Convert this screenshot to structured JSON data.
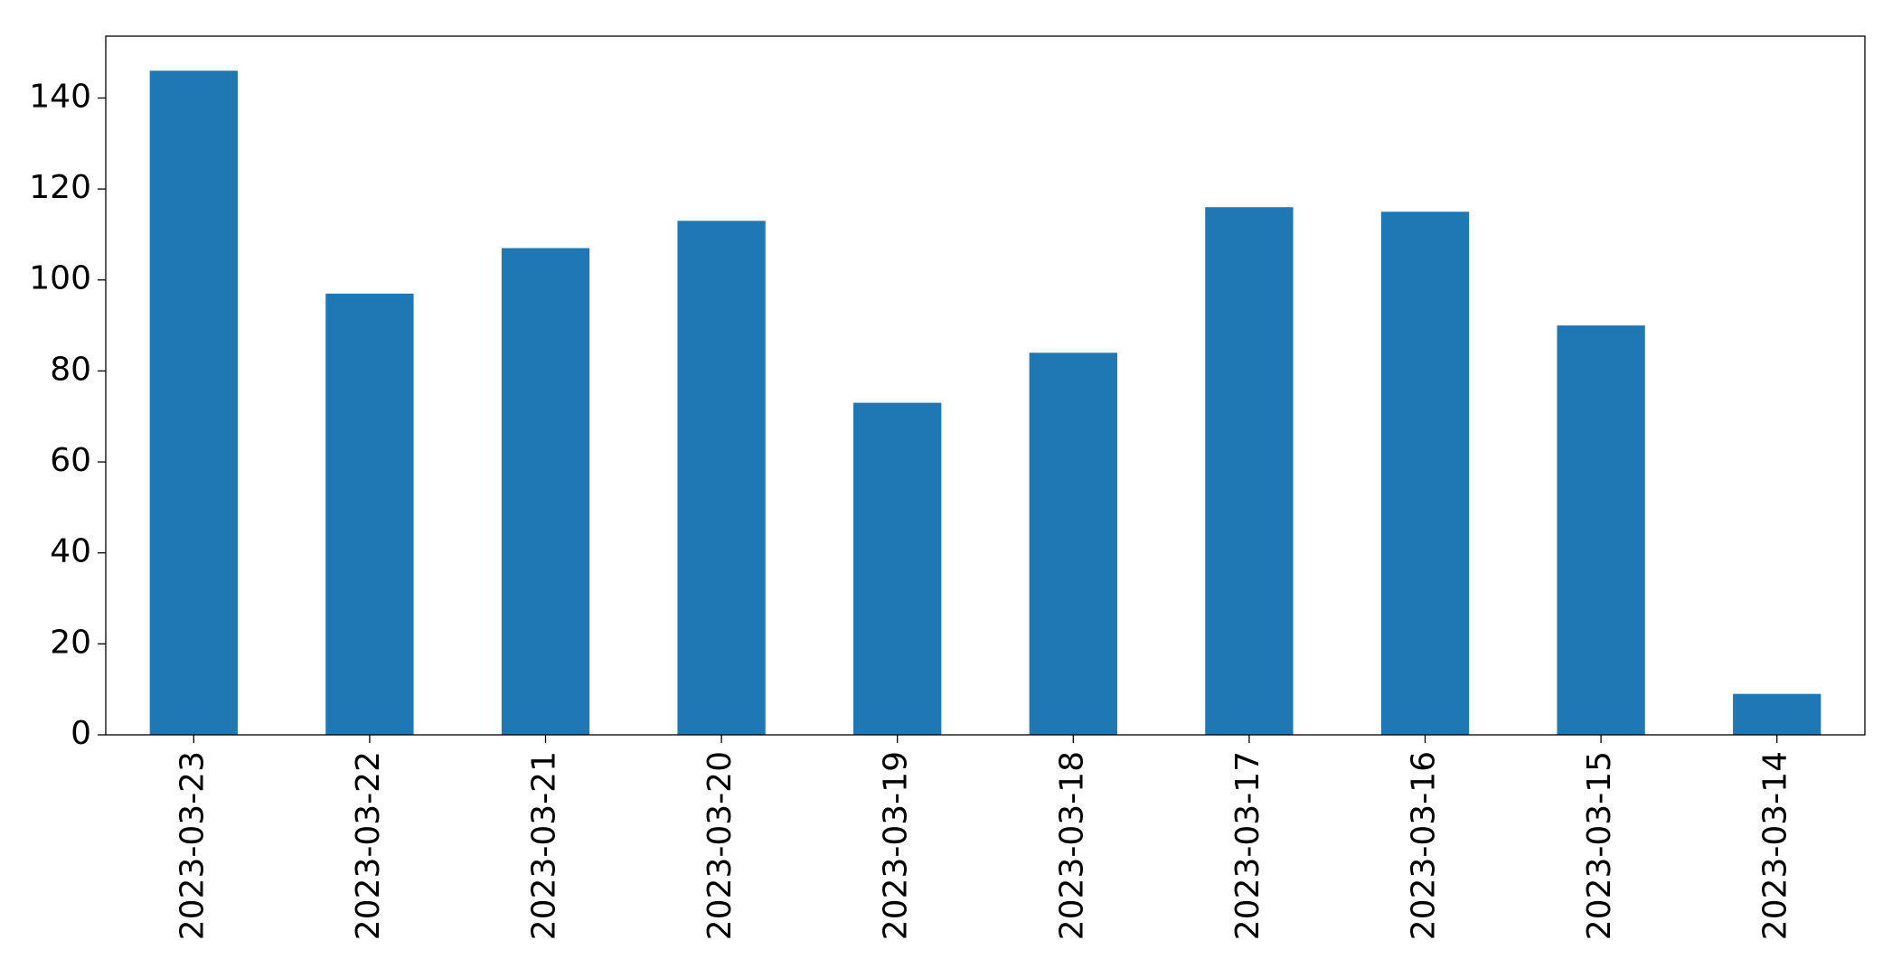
{
  "chart_data": {
    "type": "bar",
    "categories": [
      "2023-03-23",
      "2023-03-22",
      "2023-03-21",
      "2023-03-20",
      "2023-03-19",
      "2023-03-18",
      "2023-03-17",
      "2023-03-16",
      "2023-03-15",
      "2023-03-14"
    ],
    "values": [
      146,
      97,
      107,
      113,
      73,
      84,
      116,
      115,
      90,
      9
    ],
    "color": "#1f77b4",
    "ylim": [
      0,
      153.6
    ],
    "yticks": [
      0,
      20,
      40,
      60,
      80,
      100,
      120,
      140
    ],
    "grid": false
  }
}
